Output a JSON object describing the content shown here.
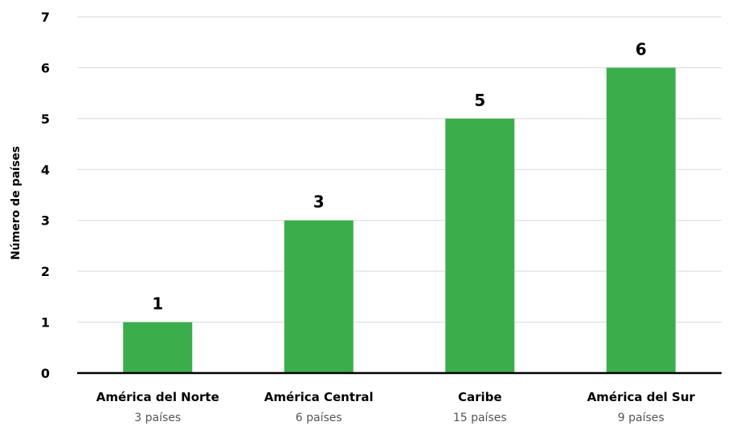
{
  "chart_data": {
    "type": "bar",
    "ylabel": "Número de países",
    "xlabel": "",
    "categories": [
      "América del Norte",
      "América Central",
      "Caribe",
      "América del Sur"
    ],
    "subcategories": [
      "3 países",
      "6 países",
      "15 países",
      "9 países"
    ],
    "values": [
      1,
      3,
      5,
      6
    ],
    "y_tick_labels": [
      "0",
      "1",
      "2",
      "3",
      "4",
      "5",
      "6",
      "7"
    ],
    "ylim": [
      0,
      7
    ],
    "grid": true,
    "bar_color": "#3bae4c"
  }
}
